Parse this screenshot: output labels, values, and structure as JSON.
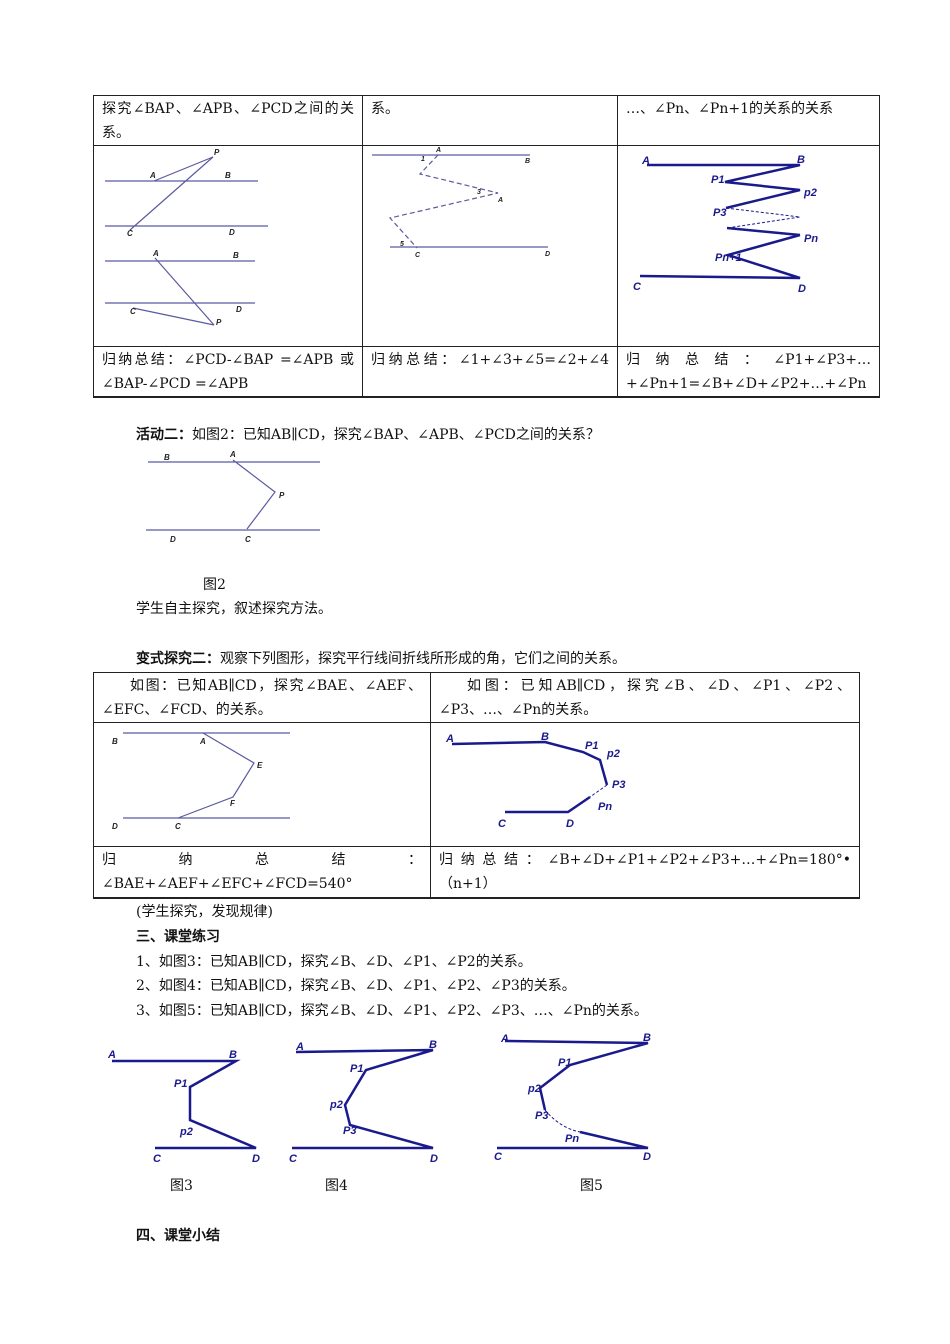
{
  "table1": {
    "row1": [
      "探究∠BAP、∠APB、∠PCD之间的关系。",
      "系。",
      "…、∠Pn、∠Pn+1的关系的关系"
    ],
    "row3": [
      "归纳总结：∠PCD-∠BAP =∠APB 或∠BAP-∠PCD =∠APB",
      "归纳总结：∠1+∠3+∠5=∠2+∠4",
      "归纳总结：∠P1+∠P3+…+∠Pn+1=∠B+∠D+∠P2+…+∠Pn"
    ],
    "fig1_labels": [
      "P",
      "A",
      "B",
      "C",
      "D",
      "A",
      "B",
      "C",
      "D",
      "P"
    ],
    "fig2_labels": [
      "A",
      "B",
      "1",
      "3",
      "A",
      "5",
      "C",
      "D"
    ],
    "fig3_labels": [
      "A",
      "B",
      "P1",
      "p2",
      "P3",
      "Pn",
      "Pn+1",
      "C",
      "D"
    ]
  },
  "activity2": {
    "title": "活动二：",
    "text": "如图2：已知AB∥CD，探究∠BAP、∠APB、∠PCD之间的关系？",
    "fig_labels": [
      "B",
      "A",
      "P",
      "D",
      "C"
    ],
    "caption": "图2",
    "note": "学生自主探究，叙述探究方法。"
  },
  "variant2": {
    "title": "变式探究二：",
    "text": "观察下列图形，探究平行线间折线所形成的角，它们之间的关系。"
  },
  "table2": {
    "row1": [
      "如图：已知AB∥CD，探究∠BAE、∠AEF、∠EFC、∠FCD、的关系。",
      "如图：已知AB∥CD，探究∠B、∠D、∠P1、∠P2、∠P3、…、∠Pn的关系。"
    ],
    "row3": [
      "归纳总结：∠BAE+∠AEF+∠EFC+∠FCD=540°",
      "归纳总结：∠B+∠D+∠P1+∠P2+∠P3+…+∠Pn=180°•（n+1）"
    ],
    "fig1_labels": [
      "B",
      "A",
      "E",
      "F",
      "D",
      "C"
    ],
    "fig2_labels": [
      "A",
      "B",
      "P1",
      "p2",
      "P3",
      "Pn",
      "C",
      "D"
    ]
  },
  "note": "(学生探究，发现规律)",
  "section3": {
    "title": "三、课堂练习",
    "items": [
      "1、如图3：已知AB∥CD，探究∠B、∠D、∠P1、∠P2的关系。",
      "2、如图4：已知AB∥CD，探究∠B、∠D、∠P1、∠P2、∠P3的关系。",
      "3、如图5：已知AB∥CD，探究∠B、∠D、∠P1、∠P2、∠P3、…、∠Pn的关系。"
    ],
    "fig3_labels": [
      "A",
      "B",
      "P1",
      "p2",
      "C",
      "D"
    ],
    "fig4_labels": [
      "A",
      "B",
      "P1",
      "p2",
      "P3",
      "C",
      "D"
    ],
    "fig5_labels": [
      "A",
      "B",
      "P1",
      "p2",
      "P3",
      "Pn",
      "C",
      "D"
    ],
    "captions": [
      "图3",
      "图4",
      "图5"
    ]
  },
  "section4": {
    "title": "四、课堂小结"
  },
  "colors": {
    "figure_line": "#1a1a8c",
    "thin_line": "#5a5aa0",
    "point": "#b03030"
  }
}
